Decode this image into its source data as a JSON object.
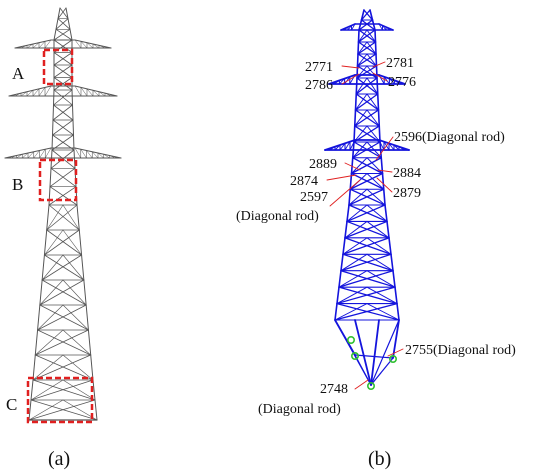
{
  "panel_a": {
    "caption": "(a)",
    "regions": [
      {
        "id": "A",
        "label": "A"
      },
      {
        "id": "B",
        "label": "B"
      },
      {
        "id": "C",
        "label": "C"
      }
    ],
    "colors": {
      "tower": "#555555",
      "highlight": "#e02020"
    }
  },
  "panel_b": {
    "caption": "(b)",
    "members": [
      {
        "id": "2771",
        "label": "2771"
      },
      {
        "id": "2786",
        "label": "2786"
      },
      {
        "id": "2781",
        "label": "2781"
      },
      {
        "id": "2776",
        "label": "2776"
      },
      {
        "id": "2596",
        "label": "2596(Diagonal rod)"
      },
      {
        "id": "2889",
        "label": "2889"
      },
      {
        "id": "2874",
        "label": "2874"
      },
      {
        "id": "2597",
        "label": "2597"
      },
      {
        "id": "2597b",
        "label": "(Diagonal rod)"
      },
      {
        "id": "2884",
        "label": "2884"
      },
      {
        "id": "2879",
        "label": "2879"
      },
      {
        "id": "2755",
        "label": "2755(Diagonal rod)"
      },
      {
        "id": "2748",
        "label": "2748"
      },
      {
        "id": "2748b",
        "label": "(Diagonal rod)"
      }
    ],
    "colors": {
      "tower": "#1414dc",
      "leader": "#e02020",
      "support": "#30c030"
    }
  }
}
